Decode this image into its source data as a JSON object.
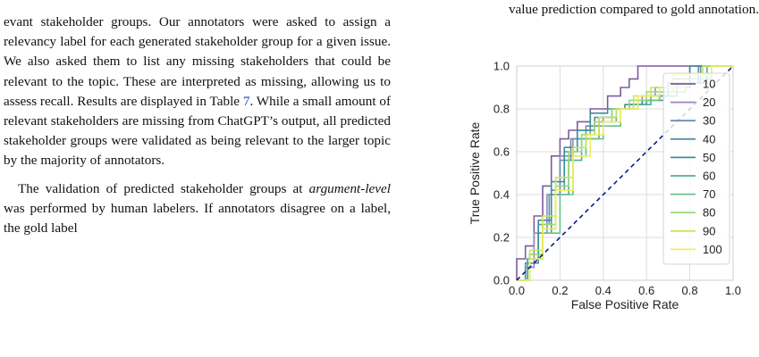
{
  "text": {
    "para1_part1": "evant stakeholder groups. Our annotators were asked to assign a relevancy label for each generated stakeholder group for a given issue. We also asked them to list any missing stakeholders that could be relevant to the topic. These are interpreted as missing, allowing us to assess recall. Results are displayed in Table ",
    "para1_ref": "7",
    "para1_part2": ". While a small amount of relevant stakeholders are missing from ChatGPT’s output, all predicted stakeholder groups were validated as being relevant to the larger topic by the majority of annotators.",
    "para2_part1": "The validation of predicted stakeholder groups at ",
    "para2_ital": "argument-level",
    "para2_part2": " was performed by human labelers. If annotators disagree on a label, the gold label",
    "caption_top": "value prediction compared to gold annotation."
  },
  "chart_data": {
    "type": "line",
    "xlabel": "False Positive Rate",
    "ylabel": "True Positive Rate",
    "xlim": [
      0,
      1
    ],
    "ylim": [
      0,
      1
    ],
    "xticks": [
      "0.0",
      "0.2",
      "0.4",
      "0.6",
      "0.8",
      "1.0"
    ],
    "yticks": [
      "0.0",
      "0.2",
      "0.4",
      "0.6",
      "0.8",
      "1.0"
    ],
    "grid": true,
    "legend_position": "right",
    "diagonal": {
      "style": "dashed",
      "color": "#0b1a8c"
    },
    "series": [
      {
        "name": "10",
        "color": "#7d5aa0",
        "x": [
          0,
          0,
          0.04,
          0.04,
          0.08,
          0.08,
          0.12,
          0.12,
          0.16,
          0.16,
          0.2,
          0.2,
          0.24,
          0.24,
          0.28,
          0.28,
          0.34,
          0.34,
          0.42,
          0.42,
          0.48,
          0.48,
          0.52,
          0.52,
          0.56,
          0.56,
          0.62,
          0.62,
          0.66,
          0.66,
          0.72,
          0.72,
          1
        ],
        "y": [
          0,
          0.1,
          0.1,
          0.16,
          0.16,
          0.3,
          0.3,
          0.44,
          0.44,
          0.58,
          0.58,
          0.66,
          0.66,
          0.7,
          0.7,
          0.74,
          0.74,
          0.8,
          0.8,
          0.86,
          0.86,
          0.9,
          0.9,
          0.94,
          0.94,
          1.0,
          1.0,
          1.0,
          1.0,
          1.0,
          1.0,
          1.0,
          1.0
        ]
      },
      {
        "name": "20",
        "color": "#9b86bd",
        "x": [
          0,
          0.04,
          0.04,
          0.08,
          0.08,
          0.14,
          0.14,
          0.2,
          0.2,
          0.26,
          0.26,
          0.34,
          0.34,
          0.4,
          0.4,
          0.46,
          0.46,
          0.52,
          0.52,
          0.58,
          0.58,
          0.64,
          0.64,
          0.72,
          0.72,
          0.8,
          0.8,
          1
        ],
        "y": [
          0,
          0,
          0.06,
          0.06,
          0.22,
          0.22,
          0.4,
          0.4,
          0.58,
          0.58,
          0.66,
          0.66,
          0.72,
          0.72,
          0.76,
          0.76,
          0.8,
          0.8,
          0.82,
          0.82,
          0.86,
          0.86,
          0.9,
          0.9,
          0.94,
          0.94,
          1.0,
          1.0
        ]
      },
      {
        "name": "30",
        "color": "#6c8eb0",
        "x": [
          0,
          0.05,
          0.05,
          0.1,
          0.1,
          0.15,
          0.15,
          0.2,
          0.2,
          0.25,
          0.25,
          0.32,
          0.32,
          0.38,
          0.38,
          0.46,
          0.46,
          0.52,
          0.52,
          0.6,
          0.6,
          0.7,
          0.7,
          0.85,
          0.85,
          1
        ],
        "y": [
          0,
          0,
          0.1,
          0.1,
          0.26,
          0.26,
          0.4,
          0.4,
          0.56,
          0.56,
          0.66,
          0.66,
          0.72,
          0.72,
          0.76,
          0.76,
          0.8,
          0.8,
          0.82,
          0.82,
          0.86,
          0.86,
          0.92,
          0.92,
          1.0,
          1.0
        ]
      },
      {
        "name": "40",
        "color": "#5a8fa3",
        "x": [
          0,
          0.04,
          0.04,
          0.1,
          0.1,
          0.16,
          0.16,
          0.22,
          0.22,
          0.28,
          0.28,
          0.36,
          0.36,
          0.44,
          0.44,
          0.52,
          0.52,
          0.6,
          0.6,
          0.7,
          0.7,
          0.84,
          0.84,
          1
        ],
        "y": [
          0,
          0,
          0.08,
          0.08,
          0.22,
          0.22,
          0.42,
          0.42,
          0.6,
          0.6,
          0.7,
          0.7,
          0.76,
          0.76,
          0.8,
          0.8,
          0.82,
          0.82,
          0.86,
          0.86,
          0.92,
          0.92,
          1.0,
          1.0
        ]
      },
      {
        "name": "50",
        "color": "#3d8f95",
        "x": [
          0,
          0.06,
          0.06,
          0.1,
          0.1,
          0.16,
          0.16,
          0.22,
          0.22,
          0.28,
          0.28,
          0.34,
          0.34,
          0.42,
          0.42,
          0.5,
          0.5,
          0.58,
          0.58,
          0.68,
          0.68,
          0.8,
          0.8,
          1
        ],
        "y": [
          0,
          0,
          0.12,
          0.12,
          0.28,
          0.28,
          0.46,
          0.46,
          0.62,
          0.62,
          0.7,
          0.7,
          0.78,
          0.78,
          0.8,
          0.8,
          0.82,
          0.82,
          0.84,
          0.84,
          0.9,
          0.9,
          1.0,
          1.0
        ]
      },
      {
        "name": "60",
        "color": "#4fae9c",
        "x": [
          0,
          0.05,
          0.05,
          0.12,
          0.12,
          0.18,
          0.18,
          0.24,
          0.24,
          0.3,
          0.3,
          0.38,
          0.38,
          0.46,
          0.46,
          0.54,
          0.54,
          0.62,
          0.62,
          0.74,
          0.74,
          0.88,
          0.88,
          1
        ],
        "y": [
          0,
          0,
          0.1,
          0.1,
          0.24,
          0.24,
          0.4,
          0.4,
          0.56,
          0.56,
          0.66,
          0.66,
          0.74,
          0.74,
          0.8,
          0.8,
          0.82,
          0.82,
          0.86,
          0.86,
          0.92,
          0.92,
          1.0,
          1.0
        ]
      },
      {
        "name": "70",
        "color": "#68c48c",
        "x": [
          0,
          0.06,
          0.06,
          0.12,
          0.12,
          0.2,
          0.2,
          0.26,
          0.26,
          0.32,
          0.32,
          0.4,
          0.4,
          0.48,
          0.48,
          0.56,
          0.56,
          0.66,
          0.66,
          0.78,
          0.78,
          0.9,
          0.9,
          1
        ],
        "y": [
          0,
          0,
          0.1,
          0.1,
          0.22,
          0.22,
          0.4,
          0.4,
          0.58,
          0.58,
          0.66,
          0.66,
          0.72,
          0.72,
          0.8,
          0.8,
          0.84,
          0.84,
          0.88,
          0.88,
          0.94,
          0.94,
          1.0,
          1.0
        ]
      },
      {
        "name": "80",
        "color": "#9ad87a",
        "x": [
          0,
          0.06,
          0.06,
          0.12,
          0.12,
          0.18,
          0.18,
          0.24,
          0.24,
          0.3,
          0.3,
          0.36,
          0.36,
          0.44,
          0.44,
          0.52,
          0.52,
          0.6,
          0.6,
          0.72,
          0.72,
          0.86,
          0.86,
          1
        ],
        "y": [
          0,
          0,
          0.12,
          0.12,
          0.26,
          0.26,
          0.44,
          0.44,
          0.6,
          0.6,
          0.68,
          0.68,
          0.74,
          0.74,
          0.8,
          0.8,
          0.84,
          0.84,
          0.88,
          0.88,
          0.96,
          0.96,
          1.0,
          1.0
        ]
      },
      {
        "name": "90",
        "color": "#c7e65c",
        "x": [
          0,
          0.06,
          0.06,
          0.12,
          0.12,
          0.18,
          0.18,
          0.26,
          0.26,
          0.32,
          0.32,
          0.38,
          0.38,
          0.46,
          0.46,
          0.54,
          0.54,
          0.62,
          0.62,
          0.72,
          0.72,
          0.86,
          0.86,
          1
        ],
        "y": [
          0,
          0,
          0.14,
          0.14,
          0.3,
          0.3,
          0.48,
          0.48,
          0.62,
          0.62,
          0.68,
          0.68,
          0.76,
          0.76,
          0.8,
          0.8,
          0.86,
          0.86,
          0.9,
          0.9,
          0.96,
          0.96,
          1.0,
          1.0
        ]
      },
      {
        "name": "100",
        "color": "#f0ee5e",
        "x": [
          0,
          0.06,
          0.06,
          0.12,
          0.12,
          0.18,
          0.18,
          0.26,
          0.26,
          0.34,
          0.34,
          0.4,
          0.4,
          0.48,
          0.48,
          0.56,
          0.56,
          0.66,
          0.66,
          0.78,
          0.78,
          0.9,
          0.9,
          1
        ],
        "y": [
          0,
          0,
          0.1,
          0.1,
          0.24,
          0.24,
          0.42,
          0.42,
          0.58,
          0.58,
          0.68,
          0.68,
          0.74,
          0.74,
          0.8,
          0.8,
          0.86,
          0.86,
          0.9,
          0.9,
          0.96,
          0.96,
          1.0,
          1.0
        ]
      }
    ]
  }
}
